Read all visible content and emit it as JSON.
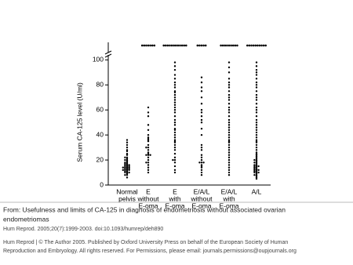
{
  "chart_data": {
    "type": "dotplot",
    "y_label": "Serum CA-125 level (U/ml)",
    "categories": [
      [
        "Normal",
        "pelvis"
      ],
      [
        "E",
        "without",
        "E-oma"
      ],
      [
        "E",
        "with",
        "E-oma"
      ],
      [
        "E/A/L",
        "without",
        "E-oma"
      ],
      [
        "E/A/L",
        "with",
        "E-oma"
      ],
      [
        "A/L"
      ]
    ],
    "values": [
      [
        6,
        8,
        8,
        9,
        10,
        10,
        10,
        11,
        11,
        12,
        12,
        12,
        12,
        13,
        13,
        13,
        14,
        14,
        14,
        14,
        15,
        15,
        15,
        16,
        16,
        16,
        17,
        17,
        18,
        18,
        19,
        20,
        20,
        21,
        22,
        22,
        24,
        25,
        27,
        28,
        30,
        32,
        34,
        36
      ],
      [
        10,
        12,
        14,
        16,
        18,
        18,
        20,
        22,
        24,
        24,
        24,
        25,
        26,
        28,
        30,
        30,
        32,
        35,
        36,
        37,
        38,
        40,
        44,
        48,
        55,
        58,
        62
      ],
      [
        10,
        12,
        15,
        18,
        20,
        20,
        22,
        25,
        28,
        30,
        32,
        34,
        35,
        36,
        38,
        40,
        42,
        44,
        45,
        48,
        50,
        52,
        55,
        58,
        60,
        62,
        64,
        66,
        68,
        70,
        72,
        74,
        75,
        78,
        80,
        82,
        85,
        88,
        92,
        95,
        98
      ],
      [
        8,
        10,
        12,
        14,
        15,
        16,
        18,
        18,
        18,
        20,
        22,
        24,
        28,
        30,
        32,
        40,
        45,
        50,
        52,
        55,
        58,
        60,
        65,
        70,
        75,
        78,
        82,
        86
      ],
      [
        8,
        10,
        12,
        14,
        16,
        18,
        20,
        22,
        24,
        26,
        28,
        30,
        32,
        34,
        35,
        36,
        38,
        40,
        42,
        44,
        46,
        48,
        50,
        52,
        55,
        58,
        60,
        62,
        65,
        68,
        70,
        72,
        75,
        78,
        80,
        82,
        85,
        90,
        94,
        98
      ],
      [
        5,
        6,
        7,
        8,
        8,
        9,
        10,
        10,
        10,
        11,
        11,
        12,
        12,
        12,
        13,
        13,
        14,
        14,
        15,
        15,
        15,
        16,
        16,
        17,
        18,
        18,
        19,
        20,
        20,
        21,
        22,
        23,
        24,
        25,
        26,
        28,
        30,
        32,
        34,
        35,
        36,
        38,
        40,
        42,
        44,
        46,
        48,
        50,
        52,
        55,
        58,
        60,
        62,
        65,
        68,
        70,
        72,
        75,
        78,
        80,
        82,
        85,
        88,
        90,
        92,
        95,
        98
      ]
    ],
    "above_break_counts": [
      0,
      7,
      12,
      5,
      9,
      10
    ],
    "color": "#000000",
    "ylim": [
      0,
      104
    ],
    "yticks": [
      0,
      20,
      40,
      60,
      80,
      100
    ]
  },
  "caption": {
    "lines": [
      "From: Usefulness and limits of CA-125 in diagnosis of endometriosis without associated ovarian",
      "endometriomas"
    ],
    "citation": "Hum Reprod. 2005;20(7):1999-2003. doi:10.1093/humrep/deh890",
    "copyright": [
      "Hum Reprod | © The Author 2005. Published by Oxford University Press on behalf of the European Society of Human",
      "Reproduction and Embryology. All rights reserved. For Permissions, please email: journals.permissions@oupjournals.org"
    ]
  }
}
